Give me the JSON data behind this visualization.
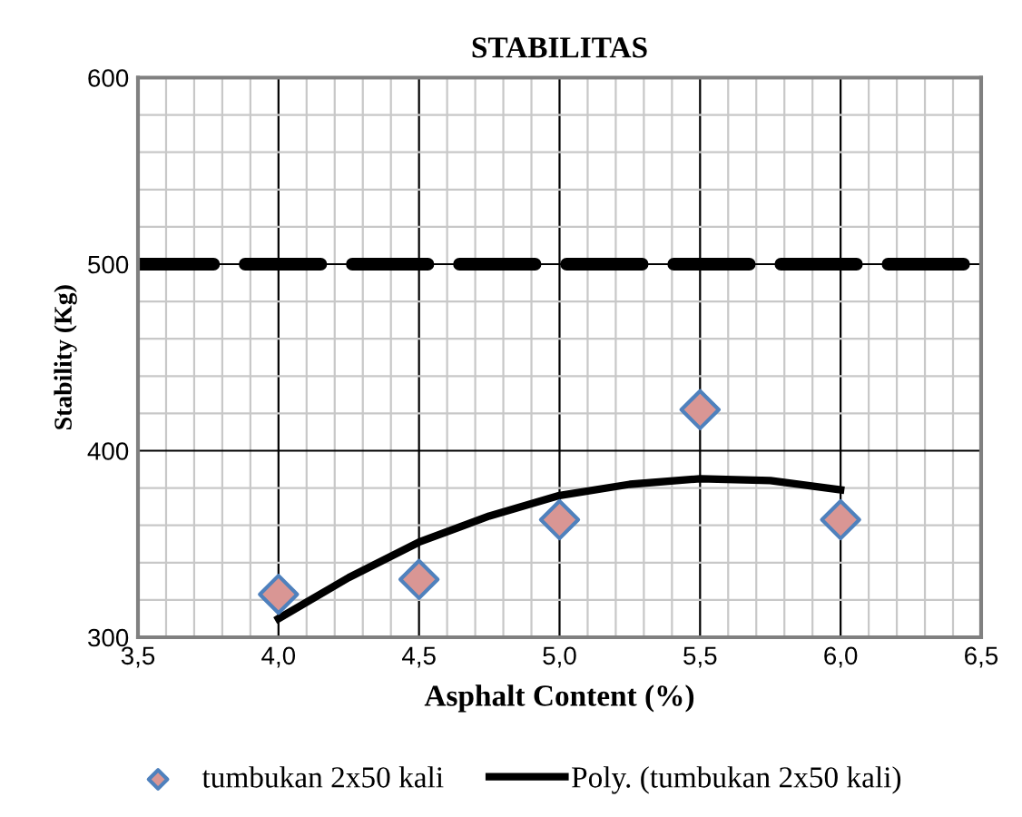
{
  "chart_data": {
    "type": "scatter",
    "title": "STABILITAS",
    "xlabel": "Asphalt Content (%)",
    "ylabel": "Stability (Kg)",
    "x": [
      4.0,
      4.5,
      5.0,
      5.5,
      6.0
    ],
    "series": [
      {
        "name": "tumbukan 2x50 kali",
        "color": "#d99694",
        "marker": "diamond",
        "values": [
          323,
          331,
          363,
          422,
          363
        ]
      },
      {
        "name": "Poly. (tumbukan 2x50 kali)",
        "type": "line",
        "color": "#000000",
        "marker": "none",
        "line_style": "solid",
        "x": [
          4.0,
          4.25,
          4.5,
          4.75,
          5.0,
          5.25,
          5.5,
          5.75,
          6.0
        ],
        "values": [
          310,
          332,
          351,
          365,
          376,
          382,
          385,
          384,
          379
        ]
      }
    ],
    "ref_lines": [
      {
        "axis": "y",
        "value": 500,
        "label": null,
        "color": "#000000",
        "line_style": "dashed"
      }
    ],
    "xlim": [
      3.5,
      6.5
    ],
    "ylim": [
      300,
      600
    ],
    "xticks": [
      {
        "value": 3.5,
        "label": "3,5"
      },
      {
        "value": 4.0,
        "label": "4,0"
      },
      {
        "value": 4.5,
        "label": "4,5"
      },
      {
        "value": 5.0,
        "label": "5,0"
      },
      {
        "value": 5.5,
        "label": "5,5"
      },
      {
        "value": 6.0,
        "label": "6,0"
      },
      {
        "value": 6.5,
        "label": "6,5"
      }
    ],
    "yticks": [
      300,
      400,
      500,
      600
    ],
    "grid": true,
    "legend": "bottom"
  }
}
